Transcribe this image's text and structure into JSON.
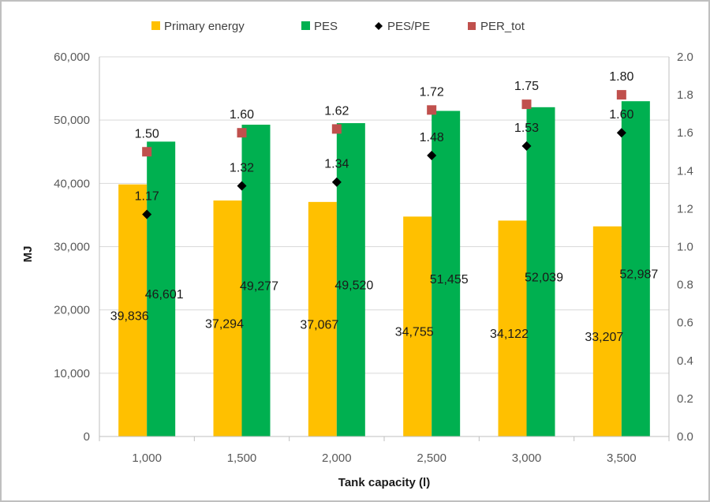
{
  "chart_data": {
    "type": "bar",
    "categories": [
      "1,000",
      "1,500",
      "2,000",
      "2,500",
      "3,000",
      "3,500"
    ],
    "xlabel": "Tank capacity (l)",
    "ylabel": "MJ",
    "ylim": [
      0,
      60000
    ],
    "y_ticks": [
      "0",
      "10,000",
      "20,000",
      "30,000",
      "40,000",
      "50,000",
      "60,000"
    ],
    "y2lim": [
      0,
      2.0
    ],
    "y2_ticks": [
      "0.0",
      "0.2",
      "0.4",
      "0.6",
      "0.8",
      "1.0",
      "1.2",
      "1.4",
      "1.6",
      "1.8",
      "2.0"
    ],
    "grid": true,
    "legend_position": "top",
    "series": [
      {
        "name": "Primary energy",
        "kind": "bar",
        "axis": "left",
        "color": "#ffc000",
        "values": [
          39836,
          37294,
          37067,
          34755,
          34122,
          33207
        ],
        "labels": [
          "39,836",
          "37,294",
          "37,067",
          "34,755",
          "34,122",
          "33,207"
        ]
      },
      {
        "name": "PES",
        "kind": "bar",
        "axis": "left",
        "color": "#00b050",
        "values": [
          46601,
          49277,
          49520,
          51455,
          52039,
          52987
        ],
        "labels": [
          "46,601",
          "49,277",
          "49,520",
          "51,455",
          "52,039",
          "52,987"
        ]
      },
      {
        "name": "PES/PE",
        "kind": "marker",
        "marker": "diamond",
        "axis": "right",
        "color": "#000000",
        "values": [
          1.17,
          1.32,
          1.34,
          1.48,
          1.53,
          1.6
        ],
        "labels": [
          "1.17",
          "1.32",
          "1.34",
          "1.48",
          "1.53",
          "1.60"
        ]
      },
      {
        "name": "PER_tot",
        "kind": "marker",
        "marker": "square",
        "axis": "right",
        "color": "#c0504d",
        "values": [
          1.5,
          1.6,
          1.62,
          1.72,
          1.75,
          1.8
        ],
        "labels": [
          "1.50",
          "1.60",
          "1.62",
          "1.72",
          "1.75",
          "1.80"
        ]
      }
    ]
  }
}
